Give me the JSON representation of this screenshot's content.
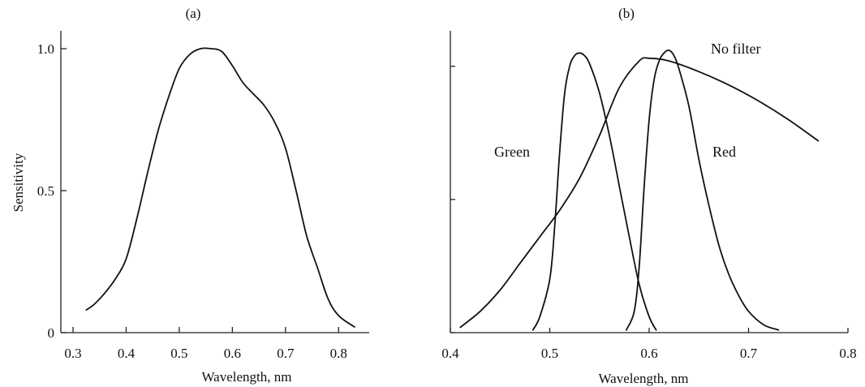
{
  "chart_data": [
    {
      "type": "line",
      "title": "(a)",
      "xlabel": "Wavelength, nm",
      "ylabel": "Sensitivity",
      "xlim": [
        0.3,
        0.85
      ],
      "ylim": [
        0,
        1.0
      ],
      "xticks": [
        0.3,
        0.4,
        0.5,
        0.6,
        0.7,
        0.8
      ],
      "xtick_labels": [
        "0.3",
        "0.4",
        "0.5",
        "0.6",
        "0.7",
        "0.8"
      ],
      "yticks": [
        0,
        0.5,
        1.0
      ],
      "ytick_labels": [
        "0",
        "0.5",
        "1.0"
      ],
      "grid": false,
      "series": [
        {
          "x": [
            0.325,
            0.34,
            0.36,
            0.38,
            0.4,
            0.42,
            0.44,
            0.46,
            0.48,
            0.5,
            0.52,
            0.54,
            0.56,
            0.58,
            0.6,
            0.62,
            0.64,
            0.66,
            0.68,
            0.7,
            0.72,
            0.74,
            0.76,
            0.78,
            0.8,
            0.83
          ],
          "y": [
            0.08,
            0.1,
            0.14,
            0.19,
            0.26,
            0.4,
            0.56,
            0.71,
            0.83,
            0.93,
            0.98,
            1.0,
            1.0,
            0.99,
            0.94,
            0.88,
            0.84,
            0.8,
            0.74,
            0.65,
            0.5,
            0.34,
            0.23,
            0.12,
            0.06,
            0.02
          ]
        }
      ]
    },
    {
      "type": "line",
      "title": "(b)",
      "xlabel": "Wavelength, nm",
      "ylabel": "",
      "xlim": [
        0.4,
        0.8
      ],
      "ylim": [
        0,
        1.06
      ],
      "xticks": [
        0.4,
        0.5,
        0.6,
        0.7,
        0.8
      ],
      "xtick_labels": [
        "0.4",
        "0.5",
        "0.6",
        "0.7",
        "0.8"
      ],
      "yticks": [
        0,
        0.5,
        1.0
      ],
      "ytick_labels": [
        "",
        "",
        ""
      ],
      "grid": false,
      "series": [
        {
          "name": "No filter",
          "x": [
            0.41,
            0.43,
            0.45,
            0.47,
            0.49,
            0.51,
            0.53,
            0.55,
            0.57,
            0.59,
            0.6,
            0.62,
            0.65,
            0.68,
            0.71,
            0.74,
            0.77
          ],
          "y": [
            0.02,
            0.08,
            0.16,
            0.26,
            0.36,
            0.46,
            0.58,
            0.74,
            0.92,
            1.02,
            1.03,
            1.02,
            0.98,
            0.93,
            0.87,
            0.8,
            0.72
          ]
        },
        {
          "name": "Green",
          "x": [
            0.483,
            0.49,
            0.5,
            0.505,
            0.51,
            0.515,
            0.52,
            0.525,
            0.53,
            0.535,
            0.54,
            0.55,
            0.56,
            0.57,
            0.58,
            0.59,
            0.6,
            0.607
          ],
          "y": [
            0.01,
            0.06,
            0.2,
            0.4,
            0.68,
            0.9,
            1.0,
            1.04,
            1.05,
            1.04,
            1.01,
            0.9,
            0.74,
            0.55,
            0.36,
            0.18,
            0.06,
            0.01
          ]
        },
        {
          "name": "Red",
          "x": [
            0.577,
            0.585,
            0.59,
            0.595,
            0.6,
            0.605,
            0.61,
            0.615,
            0.62,
            0.625,
            0.63,
            0.64,
            0.65,
            0.66,
            0.67,
            0.68,
            0.69,
            0.7,
            0.715,
            0.73
          ],
          "y": [
            0.01,
            0.08,
            0.25,
            0.55,
            0.8,
            0.95,
            1.02,
            1.05,
            1.06,
            1.04,
            0.99,
            0.85,
            0.65,
            0.48,
            0.33,
            0.22,
            0.14,
            0.08,
            0.03,
            0.01
          ]
        }
      ]
    }
  ]
}
